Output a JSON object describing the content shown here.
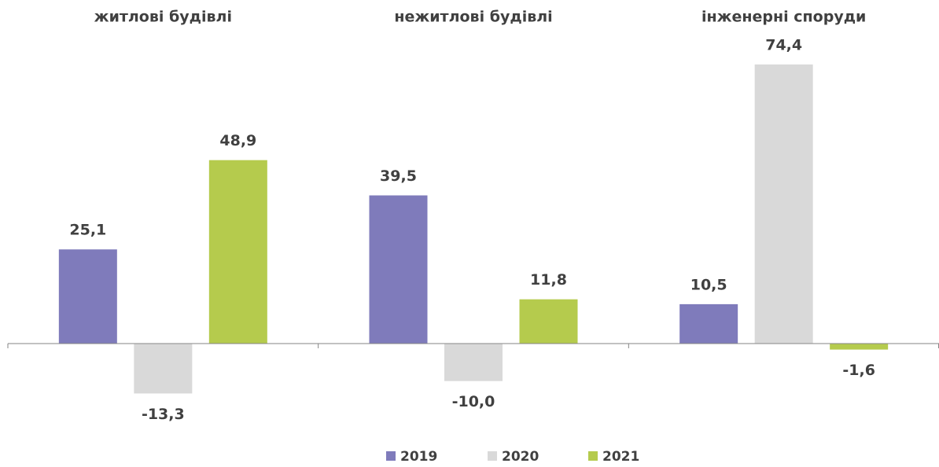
{
  "chart_data": {
    "type": "bar",
    "categories": [
      "житлові будівлі",
      "нежитлові будівлі",
      "інженерні споруди"
    ],
    "series": [
      {
        "name": "2019",
        "color": "#7f7bbb",
        "values": [
          25.1,
          39.5,
          10.5
        ],
        "value_labels": [
          "25,1",
          "39,5",
          "10,5"
        ]
      },
      {
        "name": "2020",
        "color": "#d9d9d9",
        "values": [
          -13.3,
          -10.0,
          74.4
        ],
        "value_labels": [
          "-13,3",
          "-10,0",
          "74,4"
        ]
      },
      {
        "name": "2021",
        "color": "#b5cb4d",
        "values": [
          48.9,
          11.8,
          -1.6
        ],
        "value_labels": [
          "48,9",
          "11,8",
          "-1,6"
        ]
      }
    ],
    "legend": "bottom"
  }
}
